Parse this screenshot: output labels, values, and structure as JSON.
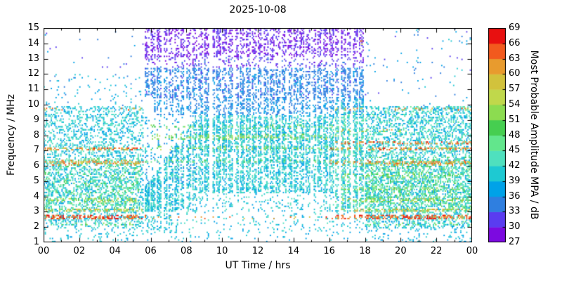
{
  "chart_data": {
    "type": "heatmap",
    "title": "2025-10-08",
    "xlabel": "UT Time / hrs",
    "ylabel": "Frequency / MHz",
    "colorbar_label": "Most Probable Amplitude MPA / dB",
    "xlim": [
      0,
      24
    ],
    "ylim": [
      1,
      15
    ],
    "grid": false,
    "background": "#ffffff",
    "axis_color": "#000000",
    "x_ticks": [
      {
        "value": 0,
        "label": "00"
      },
      {
        "value": 2,
        "label": "02"
      },
      {
        "value": 4,
        "label": "04"
      },
      {
        "value": 6,
        "label": "06"
      },
      {
        "value": 8,
        "label": "08"
      },
      {
        "value": 10,
        "label": "10"
      },
      {
        "value": 12,
        "label": "12"
      },
      {
        "value": 14,
        "label": "14"
      },
      {
        "value": 16,
        "label": "16"
      },
      {
        "value": 18,
        "label": "18"
      },
      {
        "value": 20,
        "label": "20"
      },
      {
        "value": 22,
        "label": "22"
      },
      {
        "value": 24,
        "label": "00"
      }
    ],
    "x_minor_step": 1,
    "y_ticks": [
      1,
      2,
      3,
      4,
      5,
      6,
      7,
      8,
      9,
      10,
      11,
      12,
      13,
      14,
      15
    ],
    "colorbar": {
      "min": 27,
      "max": 69,
      "step": 3,
      "tick_labels": [
        27,
        30,
        33,
        36,
        39,
        42,
        45,
        48,
        51,
        54,
        57,
        60,
        63,
        66,
        69
      ],
      "colors": [
        "#7c0ae0",
        "#5a3cf0",
        "#2f7fe0",
        "#00a2e8",
        "#1ec9d2",
        "#4fe0be",
        "#62e68c",
        "#46ce50",
        "#8cdc50",
        "#c0d84b",
        "#d2c23c",
        "#e89b2e",
        "#f25a1e",
        "#e81010"
      ]
    },
    "sampling": {
      "seed": 1234,
      "cols": 360,
      "rows": 140,
      "point_w": 1.8,
      "point_h": 2.0,
      "day_window": [
        5.6,
        18.0
      ],
      "day_start_col": 84,
      "stripe_period_cols": 5,
      "wide_gaps": [
        [
          6.62,
          6.75
        ],
        [
          7.88,
          7.97
        ],
        [
          9.33,
          9.47
        ],
        [
          10.68,
          10.78
        ],
        [
          12.22,
          12.34
        ],
        [
          13.58,
          13.68
        ],
        [
          15.02,
          15.12
        ],
        [
          16.52,
          16.62
        ],
        [
          17.2,
          17.28
        ]
      ]
    },
    "regions": [
      {
        "t": [
          0,
          5.6
        ],
        "f": [
          1.9,
          9.9
        ],
        "density": 0.38,
        "v": [
          36,
          45
        ]
      },
      {
        "t": [
          0,
          5.6
        ],
        "f": [
          1.0,
          1.9
        ],
        "density": 0.1,
        "v": [
          36,
          42
        ]
      },
      {
        "t": [
          0,
          5.6
        ],
        "f": [
          9.9,
          12.0
        ],
        "density": 0.045,
        "v": [
          35,
          41
        ]
      },
      {
        "t": [
          0,
          5.6
        ],
        "f": [
          12.0,
          15.0
        ],
        "density": 0.008,
        "v": [
          30,
          38
        ]
      },
      {
        "t": [
          0,
          5.4
        ],
        "f": [
          3.0,
          6.5
        ],
        "density": 0.18,
        "v": [
          42,
          52
        ]
      },
      {
        "t": [
          5.6,
          17.95
        ],
        "f": [
          13.1,
          15.0
        ],
        "density": 0.5,
        "v": [
          27,
          33
        ]
      },
      {
        "t": [
          5.6,
          17.95
        ],
        "f": [
          12.4,
          13.1
        ],
        "density": 0.25,
        "v": [
          29,
          34
        ]
      },
      {
        "t": [
          5.6,
          17.95
        ],
        "f": [
          10.4,
          12.4
        ],
        "density": 0.6,
        "v": [
          32.5,
          37
        ]
      },
      {
        "t": [
          6.2,
          17.95
        ],
        "f": [
          9.3,
          10.4
        ],
        "density": 0.45,
        "v": [
          33,
          39
        ]
      },
      {
        "t": [
          5.6,
          8.6
        ],
        "f": [
          3.0,
          9.3
        ],
        "density": 0.75,
        "v": [
          36,
          45
        ],
        "ramp": {
          "f0": 3.0,
          "top": [
            4.5,
            9.3
          ]
        }
      },
      {
        "t": [
          8.6,
          16.3
        ],
        "f": [
          4.2,
          9.3
        ],
        "density": 0.75,
        "v": [
          36,
          45
        ]
      },
      {
        "t": [
          8.6,
          16.3
        ],
        "f": [
          3.0,
          4.2
        ],
        "density": 0.18,
        "v": [
          36,
          44
        ]
      },
      {
        "t": [
          16.3,
          17.95
        ],
        "f": [
          3.0,
          9.5
        ],
        "density": 0.75,
        "v": [
          37,
          47
        ]
      },
      {
        "t": [
          5.6,
          8.6
        ],
        "f": [
          4.5,
          9.3
        ],
        "density": 0.12,
        "v": [
          34,
          40
        ]
      },
      {
        "t": [
          5.6,
          18.0
        ],
        "f": [
          1.6,
          3.0
        ],
        "density": 0.1,
        "v": [
          36,
          43
        ]
      },
      {
        "t": [
          5.6,
          7.5
        ],
        "f": [
          1.6,
          3.0
        ],
        "density": 0.25,
        "v": [
          36,
          44
        ]
      },
      {
        "t": [
          5.6,
          18.0
        ],
        "f": [
          1.0,
          1.6
        ],
        "density": 0.05,
        "v": [
          36,
          42
        ]
      },
      {
        "t": [
          16.3,
          17.95
        ],
        "f": [
          9.5,
          10.4
        ],
        "density": 0.3,
        "v": [
          36,
          44
        ]
      },
      {
        "t": [
          17.95,
          24
        ],
        "f": [
          1.9,
          9.9
        ],
        "density": 0.5,
        "v": [
          36,
          46
        ]
      },
      {
        "t": [
          18,
          24
        ],
        "f": [
          3.0,
          6.6
        ],
        "density": 0.22,
        "v": [
          42,
          52
        ]
      },
      {
        "t": [
          17.95,
          24
        ],
        "f": [
          1.0,
          1.9
        ],
        "density": 0.1,
        "v": [
          36,
          42
        ]
      },
      {
        "t": [
          17.95,
          24
        ],
        "f": [
          9.9,
          15.0
        ],
        "density": 0.018,
        "v": [
          32,
          40
        ]
      },
      {
        "t": [
          6.0,
          16.5
        ],
        "f": [
          7.75,
          8.05
        ],
        "density": 0.45,
        "v": [
          47,
          56
        ]
      },
      {
        "t": [
          6.0,
          16.5
        ],
        "f": [
          8.45,
          8.65
        ],
        "density": 0.3,
        "v": [
          44,
          53
        ]
      },
      {
        "t": [
          5.6,
          16.3
        ],
        "f": [
          6.2,
          6.4
        ],
        "density": 0.35,
        "v": [
          43,
          52
        ]
      },
      {
        "t": [
          5.6,
          16.3
        ],
        "f": [
          7.05,
          7.25
        ],
        "density": 0.35,
        "v": [
          46,
          56
        ]
      }
    ],
    "bands": [
      {
        "f": 2.65,
        "w": 0.13,
        "t": [
          [
            0,
            5.8
          ],
          [
            16.3,
            24
          ]
        ],
        "density": 0.75,
        "v": [
          60,
          69
        ]
      },
      {
        "f": 2.65,
        "w": 0.1,
        "t": [
          [
            5.8,
            16.3
          ]
        ],
        "density": 0.07,
        "v": [
          57,
          67
        ]
      },
      {
        "f": 3.1,
        "w": 0.1,
        "t": [
          [
            0,
            5.5
          ],
          [
            16.5,
            24
          ]
        ],
        "density": 0.45,
        "v": [
          52,
          62
        ]
      },
      {
        "f": 3.75,
        "w": 0.12,
        "t": [
          [
            0,
            5.2
          ],
          [
            16.5,
            24
          ]
        ],
        "density": 0.4,
        "v": [
          48,
          59
        ]
      },
      {
        "f": 4.5,
        "w": 0.1,
        "t": [
          [
            16.5,
            24
          ]
        ],
        "density": 0.3,
        "v": [
          45,
          56
        ]
      },
      {
        "f": 5.35,
        "w": 0.1,
        "t": [
          [
            16.5,
            23.5
          ]
        ],
        "density": 0.28,
        "v": [
          46,
          56
        ]
      },
      {
        "f": 6.2,
        "w": 0.12,
        "t": [
          [
            0,
            5.6
          ],
          [
            16,
            24
          ]
        ],
        "density": 0.6,
        "v": [
          56,
          66
        ]
      },
      {
        "f": 7.1,
        "w": 0.1,
        "t": [
          [
            0,
            5.6
          ],
          [
            16,
            24
          ]
        ],
        "density": 0.55,
        "v": [
          56,
          67
        ]
      },
      {
        "f": 7.5,
        "w": 0.09,
        "t": [
          [
            16.3,
            24
          ]
        ],
        "density": 0.45,
        "v": [
          58,
          68
        ]
      },
      {
        "f": 9.7,
        "w": 0.09,
        "t": [
          [
            0,
            1.3
          ],
          [
            4.2,
            5.5
          ],
          [
            16,
            18.2
          ],
          [
            19.5,
            24
          ]
        ],
        "density": 0.22,
        "v": [
          54,
          66
        ]
      },
      {
        "f": 8.3,
        "w": 0.08,
        "t": [
          [
            16.3,
            20
          ]
        ],
        "density": 0.3,
        "v": [
          50,
          62
        ]
      },
      {
        "f": 14.1,
        "w": 0.25,
        "t": [
          [
            17.2,
            18.1
          ]
        ],
        "density": 0.08,
        "v": [
          57,
          67
        ]
      },
      {
        "f": 2.2,
        "w": 0.08,
        "t": [
          [
            0,
            5
          ],
          [
            18,
            24
          ]
        ],
        "density": 0.2,
        "v": [
          44,
          54
        ]
      }
    ]
  }
}
